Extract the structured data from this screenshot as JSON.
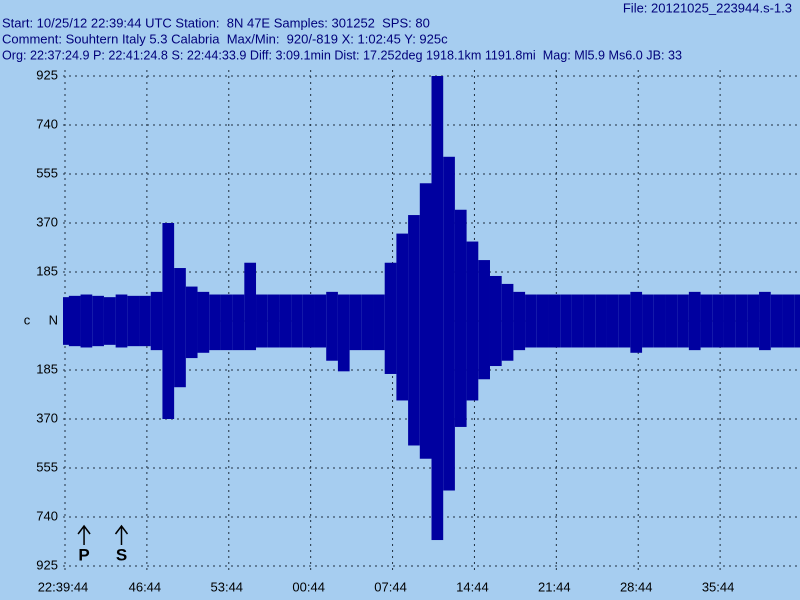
{
  "header": {
    "file": "File: 20121025_223944.s-1.3",
    "lines": [
      "Start: 10/25/12 22:39:44 UTC Station:  8N 47E Samples: 301252  SPS: 80",
      "Comment: Souhtern Italy 5.3 Calabria  Max/Min:  920/-819 X: 1:02:45 Y: 925c",
      "Org: 22:37:24.9 P: 22:41:24.8 S: 22:44:33.9 Diff: 3:09.1min Dist: 17.252deg 1918.1km 1191.8mi  Mag: Ml5.9 Ms6.0 JB: 33"
    ]
  },
  "chart_data": {
    "type": "envelope",
    "y_axis_label": "c",
    "x": [
      0,
      1,
      2,
      3,
      4,
      5,
      6,
      7,
      8,
      9,
      10,
      11,
      12,
      13,
      14,
      15,
      16,
      17,
      18,
      19,
      20,
      21,
      22,
      23,
      24,
      25,
      26,
      27,
      28,
      29,
      30,
      31,
      32,
      33,
      34,
      35,
      36,
      37,
      38,
      39,
      40,
      41,
      42,
      43,
      44,
      45,
      46,
      47,
      48,
      49,
      50,
      51,
      52,
      53,
      54,
      55,
      56,
      57,
      58,
      59,
      60,
      61,
      62,
      63
    ],
    "series": [
      {
        "color": "#0000a0",
        "values": [
          90,
          95,
          100,
          95,
          90,
          100,
          95,
          95,
          110,
          370,
          200,
          130,
          110,
          100,
          100,
          100,
          220,
          100,
          100,
          100,
          100,
          100,
          100,
          110,
          100,
          100,
          100,
          100,
          220,
          330,
          400,
          520,
          925,
          620,
          420,
          300,
          230,
          170,
          140,
          110,
          100,
          100,
          100,
          100,
          100,
          100,
          100,
          100,
          100,
          110,
          100,
          100,
          100,
          100,
          110,
          100,
          100,
          100,
          100,
          100,
          110,
          100,
          100,
          100
        ]
      },
      {
        "color": "#0000a0",
        "values": [
          -90,
          -95,
          -100,
          -95,
          -90,
          -100,
          -95,
          -95,
          -110,
          -370,
          -250,
          -140,
          -120,
          -110,
          -110,
          -110,
          -110,
          -100,
          -100,
          -100,
          -100,
          -100,
          -100,
          -150,
          -190,
          -110,
          -110,
          -110,
          -200,
          -300,
          -470,
          -520,
          -827,
          -640,
          -400,
          -300,
          -220,
          -170,
          -150,
          -110,
          -100,
          -100,
          -100,
          -100,
          -100,
          -100,
          -100,
          -100,
          -100,
          -120,
          -100,
          -100,
          -100,
          -100,
          -110,
          -100,
          -100,
          -100,
          -100,
          -100,
          -110,
          -100,
          -100,
          -100
        ]
      }
    ],
    "xlim": [
      0,
      63
    ],
    "xticks": [
      {
        "value": 0,
        "label": "22:39:44"
      },
      {
        "value": 7,
        "label": "46:44"
      },
      {
        "value": 14,
        "label": "53:44"
      },
      {
        "value": 21,
        "label": "00:44"
      },
      {
        "value": 28,
        "label": "07:44"
      },
      {
        "value": 35,
        "label": "14:44"
      },
      {
        "value": 42,
        "label": "21:44"
      },
      {
        "value": 49,
        "label": "28:44"
      },
      {
        "value": 56,
        "label": "35:44"
      }
    ],
    "ylim": [
      -925,
      925
    ],
    "yticks": [
      925,
      740,
      555,
      370,
      185,
      {
        "value": 0,
        "label": "N"
      },
      {
        "value": -185,
        "label": "185"
      },
      {
        "value": -370,
        "label": "370"
      },
      {
        "value": -555,
        "label": "555"
      },
      {
        "value": -740,
        "label": "740"
      },
      {
        "value": -925,
        "label": "925"
      }
    ],
    "grid": true,
    "annotations": [
      {
        "text": "P",
        "x": 1.8
      },
      {
        "text": "S",
        "x": 5
      }
    ]
  }
}
